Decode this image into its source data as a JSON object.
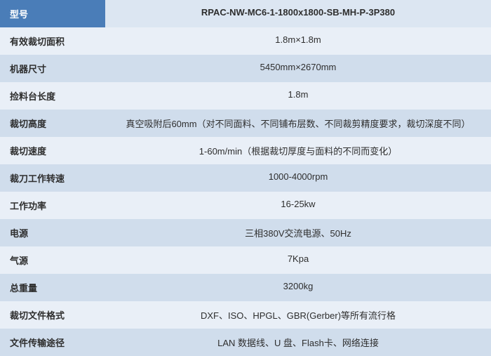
{
  "spec_table": {
    "rows": [
      {
        "label": "型号",
        "value": "RPAC-NW-MC6-1-1800x1800-SB-MH-P-3P380"
      },
      {
        "label": "有效裁切面积",
        "value": "1.8m×1.8m"
      },
      {
        "label": "机器尺寸",
        "value": "5450mm×2670mm"
      },
      {
        "label": "捡料台长度",
        "value": "1.8m"
      },
      {
        "label": "裁切高度",
        "value": "真空吸附后60mm（对不同面料、不同铺布层数、不同裁剪精度要求，裁切深度不同）"
      },
      {
        "label": "裁切速度",
        "value": "1-60m/min（根据裁切厚度与面料的不同而变化）"
      },
      {
        "label": "裁刀工作转速",
        "value": "1000-4000rpm"
      },
      {
        "label": "工作功率",
        "value": "16-25kw"
      },
      {
        "label": "电源",
        "value": "三相380V交流电源、50Hz"
      },
      {
        "label": "气源",
        "value": "7Kpa"
      },
      {
        "label": "总重量",
        "value": "3200kg"
      },
      {
        "label": "裁切文件格式",
        "value": "DXF、ISO、HPGL、GBR(Gerber)等所有流行格"
      },
      {
        "label": "文件传输途径",
        "value": "LAN 数据线、U 盘、Flash卡、网络连接"
      }
    ],
    "colors": {
      "header_label_bg": "#4a7db8",
      "header_label_text": "#ffffff",
      "header_value_bg": "#dce6f2",
      "even_bg": "#e9eff7",
      "odd_bg": "#d0ddec",
      "text": "#2e2e2e"
    },
    "label_fontsize": 13,
    "value_fontsize": 13,
    "label_col_width": 150
  }
}
